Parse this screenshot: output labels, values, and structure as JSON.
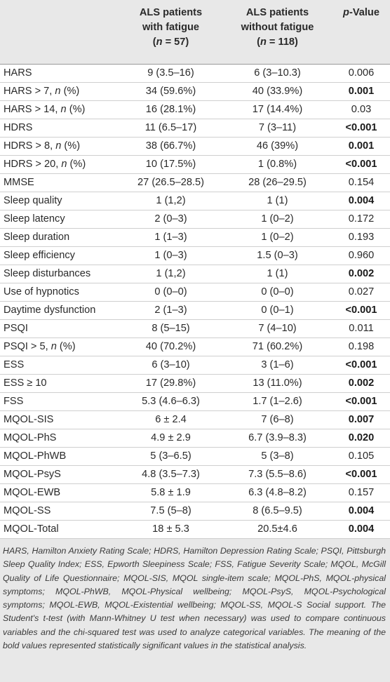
{
  "table": {
    "headers": {
      "col1": "",
      "col2": [
        "ALS patients",
        "with fatigue",
        "(n = 57)"
      ],
      "col3": [
        "ALS patients",
        "without fatigue",
        "(n = 118)"
      ],
      "col4": "p-Value"
    },
    "rows": [
      {
        "label": "HARS",
        "with": "9 (3.5–16)",
        "without": "6 (3–10.3)",
        "p": "0.006",
        "sig": false
      },
      {
        "label": "HARS > 7, n (%)",
        "with": "34 (59.6%)",
        "without": "40 (33.9%)",
        "p": "0.001",
        "sig": true
      },
      {
        "label": "HARS > 14, n (%)",
        "with": "16 (28.1%)",
        "without": "17 (14.4%)",
        "p": "0.03",
        "sig": false
      },
      {
        "label": "HDRS",
        "with": "11 (6.5–17)",
        "without": "7 (3–11)",
        "p": "<0.001",
        "sig": true
      },
      {
        "label": "HDRS > 8, n (%)",
        "with": "38 (66.7%)",
        "without": "46 (39%)",
        "p": "0.001",
        "sig": true
      },
      {
        "label": "HDRS > 20, n (%)",
        "with": "10 (17.5%)",
        "without": "1 (0.8%)",
        "p": "<0.001",
        "sig": true
      },
      {
        "label": "MMSE",
        "with": "27 (26.5–28.5)",
        "without": "28 (26–29.5)",
        "p": "0.154",
        "sig": false
      },
      {
        "label": "Sleep quality",
        "with": "1 (1,2)",
        "without": "1 (1)",
        "p": "0.004",
        "sig": true
      },
      {
        "label": "Sleep latency",
        "with": "2 (0–3)",
        "without": "1 (0–2)",
        "p": "0.172",
        "sig": false
      },
      {
        "label": "Sleep duration",
        "with": "1 (1–3)",
        "without": "1 (0–2)",
        "p": "0.193",
        "sig": false
      },
      {
        "label": "Sleep efficiency",
        "with": "1 (0–3)",
        "without": "1.5 (0–3)",
        "p": "0.960",
        "sig": false
      },
      {
        "label": "Sleep disturbances",
        "with": "1 (1,2)",
        "without": "1 (1)",
        "p": "0.002",
        "sig": true
      },
      {
        "label": "Use of hypnotics",
        "with": "0 (0–0)",
        "without": "0 (0–0)",
        "p": "0.027",
        "sig": false
      },
      {
        "label": "Daytime dysfunction",
        "with": "2 (1–3)",
        "without": "0 (0–1)",
        "p": "<0.001",
        "sig": true
      },
      {
        "label": "PSQI",
        "with": "8 (5–15)",
        "without": "7 (4–10)",
        "p": "0.011",
        "sig": false
      },
      {
        "label": "PSQI > 5, n (%)",
        "with": "40 (70.2%)",
        "without": "71 (60.2%)",
        "p": "0.198",
        "sig": false
      },
      {
        "label": "ESS",
        "with": "6 (3–10)",
        "without": "3 (1–6)",
        "p": "<0.001",
        "sig": true
      },
      {
        "label": "ESS ≥ 10",
        "with": "17 (29.8%)",
        "without": "13 (11.0%)",
        "p": "0.002",
        "sig": true
      },
      {
        "label": "FSS",
        "with": "5.3 (4.6–6.3)",
        "without": "1.7 (1–2.6)",
        "p": "<0.001",
        "sig": true
      },
      {
        "label": "MQOL-SIS",
        "with": "6 ± 2.4",
        "without": "7 (6–8)",
        "p": "0.007",
        "sig": true
      },
      {
        "label": "MQOL-PhS",
        "with": "4.9 ± 2.9",
        "without": "6.7 (3.9–8.3)",
        "p": "0.020",
        "sig": true
      },
      {
        "label": "MQOL-PhWB",
        "with": "5 (3–6.5)",
        "without": "5 (3–8)",
        "p": "0.105",
        "sig": false
      },
      {
        "label": "MQOL-PsyS",
        "with": "4.8 (3.5–7.3)",
        "without": "7.3 (5.5–8.6)",
        "p": "<0.001",
        "sig": true
      },
      {
        "label": "MQOL-EWB",
        "with": "5.8 ± 1.9",
        "without": "6.3 (4.8–8.2)",
        "p": "0.157",
        "sig": false
      },
      {
        "label": "MQOL-SS",
        "with": "7.5 (5–8)",
        "without": "8 (6.5–9.5)",
        "p": "0.004",
        "sig": true
      },
      {
        "label": "MQOL-Total",
        "with": "18 ± 5.3",
        "without": "20.5±4.6",
        "p": "0.004",
        "sig": true
      }
    ]
  },
  "footnote": "HARS, Hamilton Anxiety Rating Scale; HDRS, Hamilton Depression Rating Scale; PSQI, Pittsburgh Sleep Quality Index; ESS, Epworth Sleepiness Scale; FSS, Fatigue Severity Scale; MQOL, McGill Quality of Life Questionnaire; MQOL-SIS, MQOL single-item scale; MQOL-PhS, MQOL-physical symptoms; MQOL-PhWB, MQOL-Physical wellbeing; MQOL-PsyS, MQOL-Psychological symptoms; MQOL-EWB, MQOL-Existential wellbeing; MQOL-SS, MQOL-S Social support. The Student's t-test (with Mann-Whitney U test when necessary) was used to compare continuous variables and the chi-squared test was used to analyze categorical variables. The meaning of the bold values represented statistically significant values in the statistical analysis."
}
